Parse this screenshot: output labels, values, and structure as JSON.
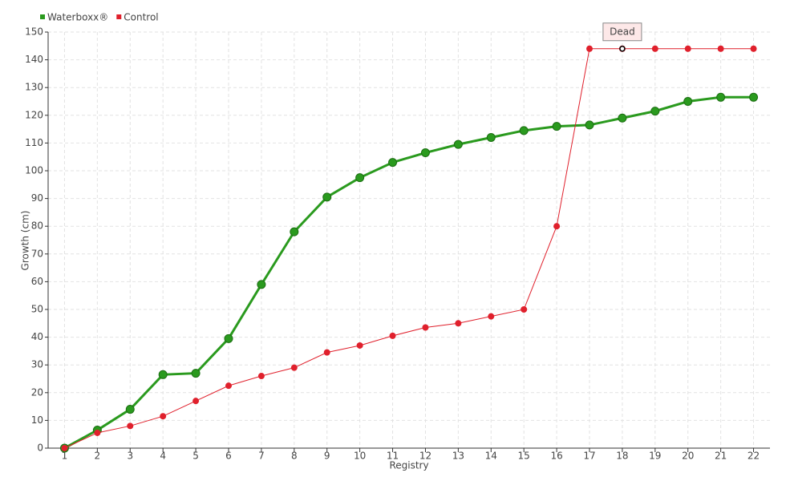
{
  "chart_data": {
    "type": "line",
    "x_label": "Registry",
    "y_label": "Growth (cm)",
    "categories": [
      "1",
      "2",
      "3",
      "4",
      "5",
      "6",
      "7",
      "8",
      "9",
      "10",
      "11",
      "12",
      "13",
      "14",
      "15",
      "16",
      "17",
      "18",
      "19",
      "20",
      "21",
      "22"
    ],
    "series": [
      {
        "name": "Waterboxx®",
        "color": "#2a9a1e",
        "values": [
          0,
          6.5,
          14,
          26.5,
          27,
          39.5,
          59,
          78,
          90.5,
          97.5,
          103,
          106.5,
          109.5,
          112,
          114.5,
          116,
          116.5,
          119,
          121.5,
          125,
          126.5,
          126.5
        ]
      },
      {
        "name": "Control",
        "color": "#e0202c",
        "values": [
          0,
          5.5,
          8,
          11.5,
          17,
          22.5,
          26,
          29,
          34.5,
          37,
          40.5,
          43.5,
          45,
          47.5,
          50,
          80,
          144,
          144,
          144,
          144,
          144,
          144
        ]
      }
    ],
    "annotations": [
      {
        "text": "Dead",
        "x": "18",
        "y": 144
      }
    ],
    "ylim": [
      0,
      150
    ],
    "yticks": [
      0,
      10,
      20,
      30,
      40,
      50,
      60,
      70,
      80,
      90,
      100,
      110,
      120,
      130,
      140,
      150
    ],
    "grid": true,
    "legend": "top-left"
  }
}
